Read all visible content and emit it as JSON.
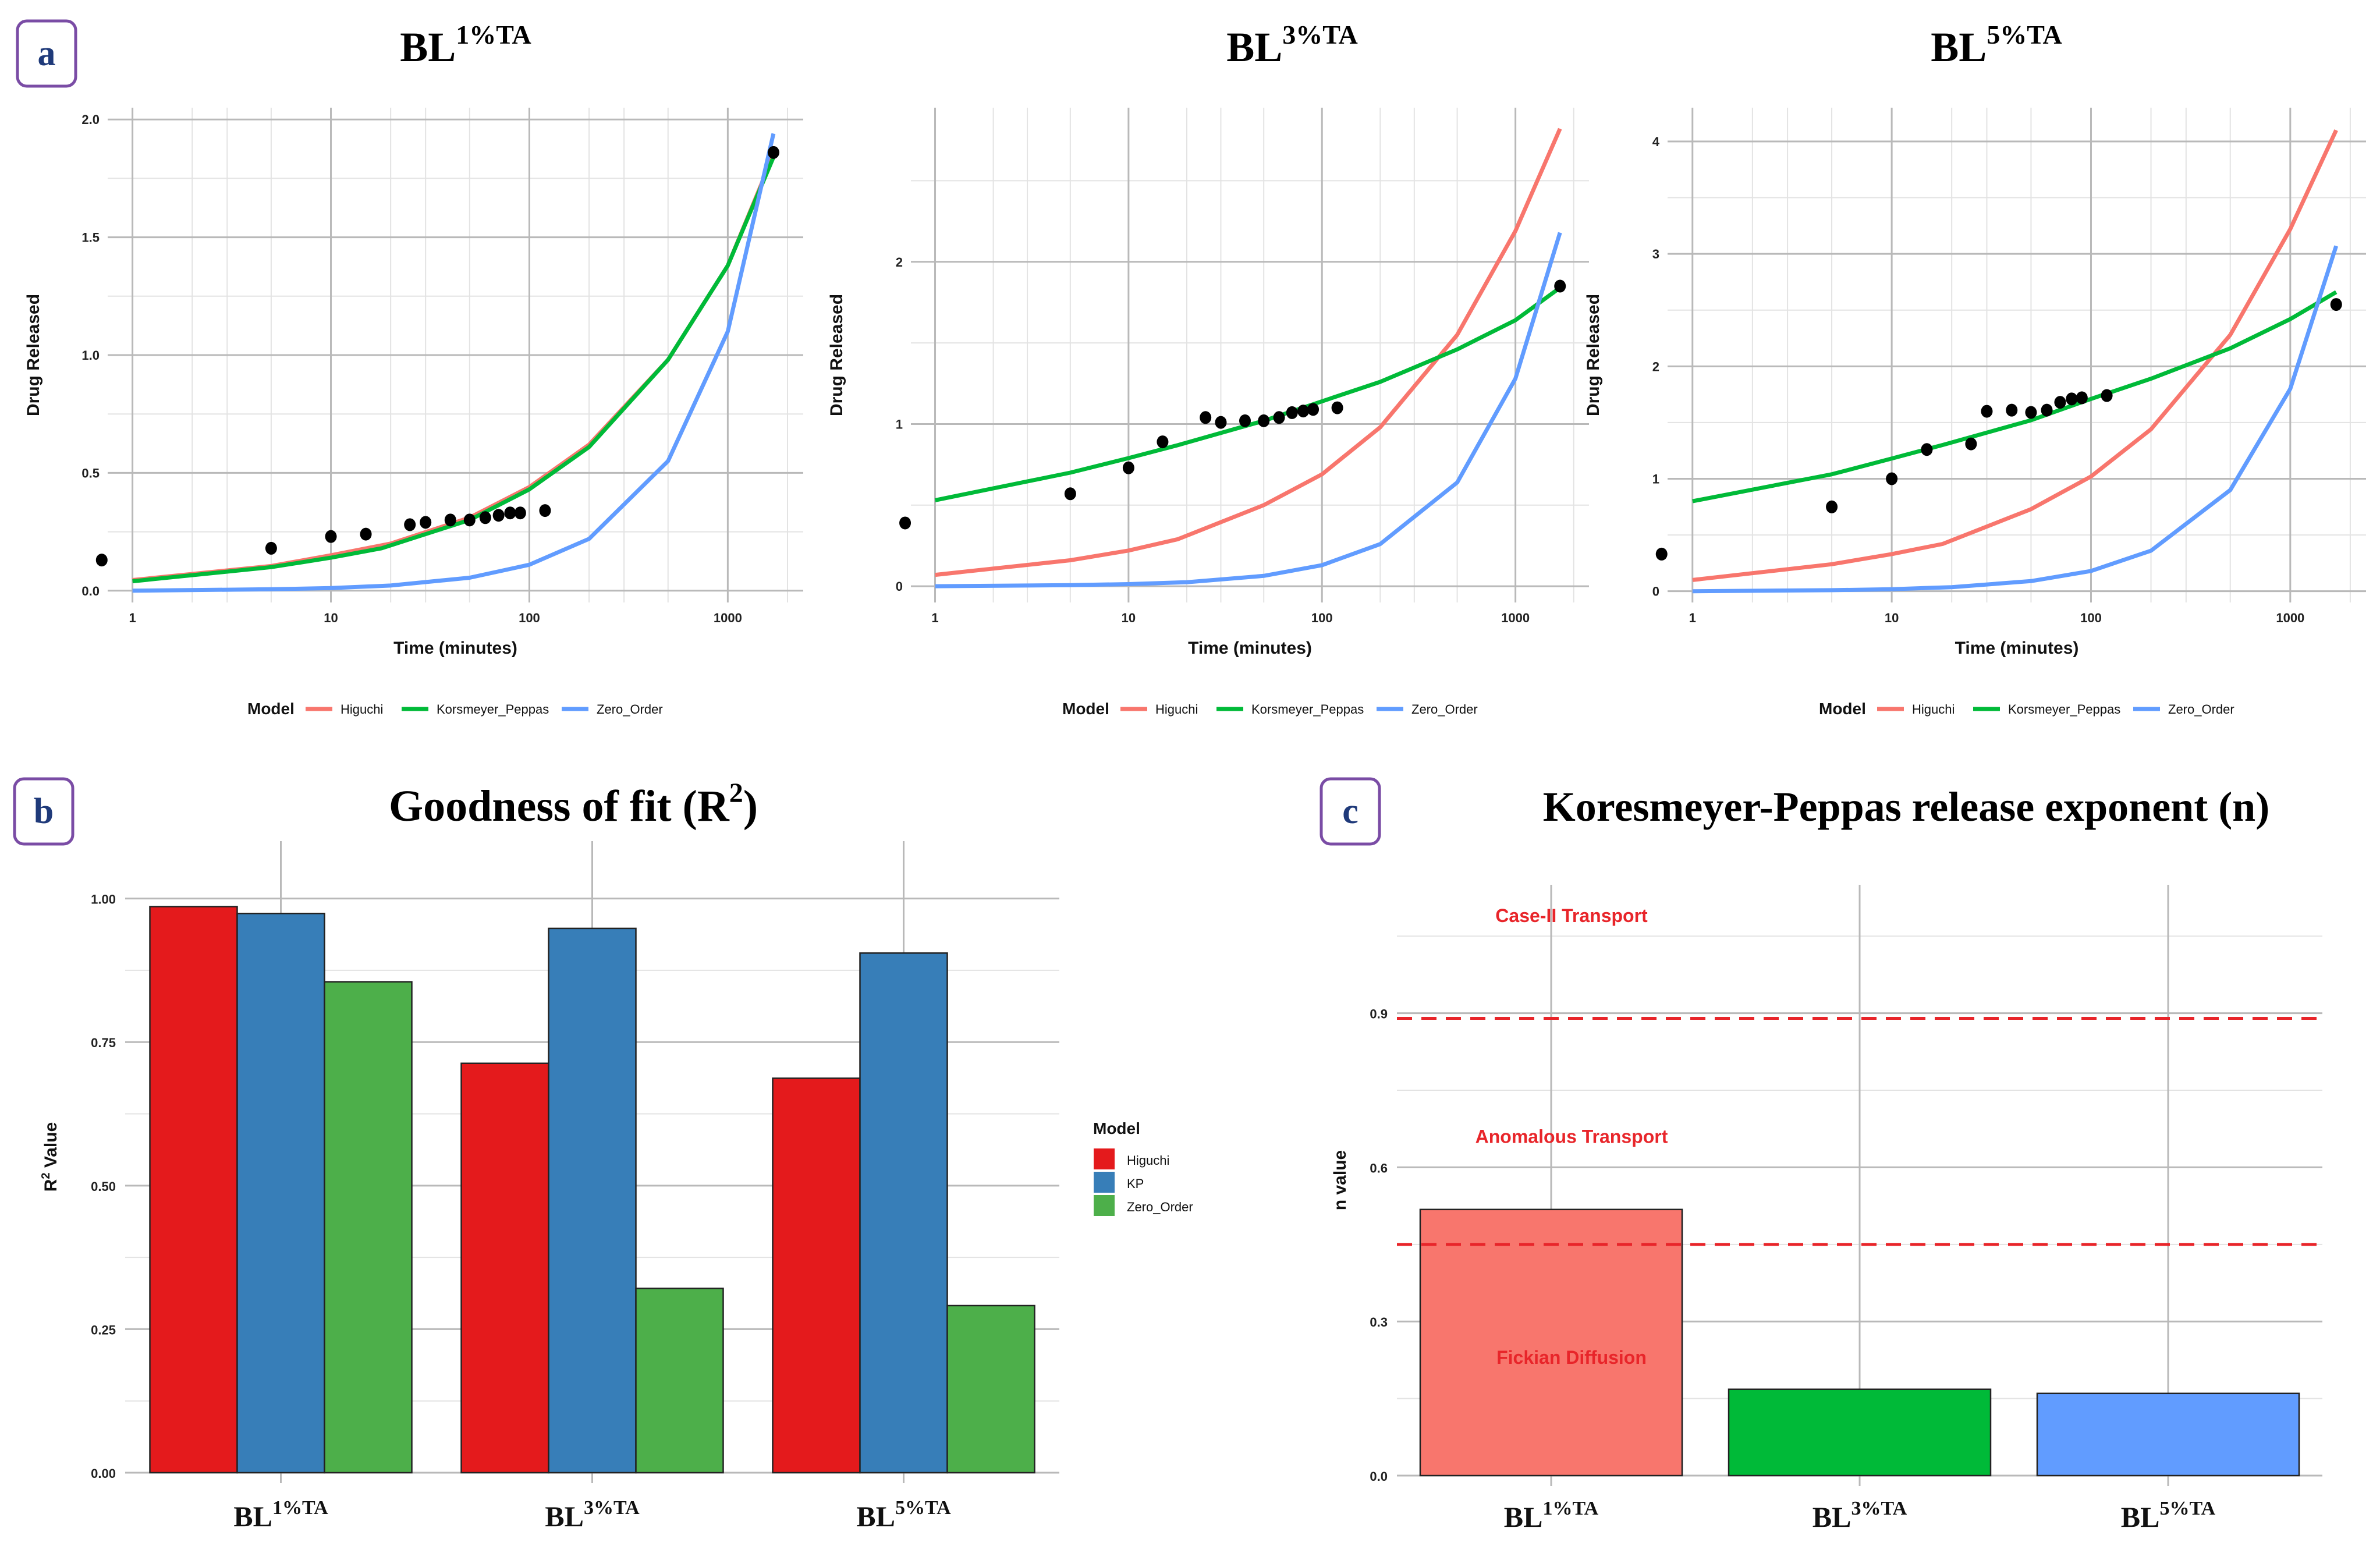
{
  "figure": {
    "panel_labels": {
      "a": "a",
      "b": "b",
      "c": "c"
    }
  },
  "chart_data": [
    {
      "id": "a1",
      "type": "line",
      "title": {
        "base": "BL",
        "sup": "1%TA"
      },
      "xlabel": "Time (minutes)",
      "ylabel": "Drug Released",
      "xscale": "log",
      "xlim": [
        0.75,
        2400
      ],
      "ylim": [
        -0.05,
        2.05
      ],
      "xticks": [
        1,
        10,
        100,
        1000
      ],
      "xtick_labels": [
        "1",
        "10",
        "100",
        "1000"
      ],
      "yticks": [
        0,
        0.5,
        1,
        1.5,
        2
      ],
      "ytick_labels": [
        "0.0",
        "0.5",
        "1.0",
        "1.5",
        "2.0"
      ],
      "legend": {
        "title": "Model",
        "position": "bottom",
        "entries": [
          "Higuchi",
          "Korsmeyer_Peppas",
          "Zero_Order"
        ]
      },
      "series": [
        {
          "name": "Higuchi",
          "color": "#f8766d",
          "points": [
            [
              1,
              0.045
            ],
            [
              5,
              0.105
            ],
            [
              10,
              0.15
            ],
            [
              20,
              0.2
            ],
            [
              50,
              0.31
            ],
            [
              100,
              0.44
            ],
            [
              200,
              0.62
            ],
            [
              500,
              0.98
            ],
            [
              1000,
              1.38
            ],
            [
              1700,
              1.85
            ]
          ]
        },
        {
          "name": "Korsmeyer_Peppas",
          "color": "#00ba38",
          "points": [
            [
              1,
              0.04
            ],
            [
              5,
              0.1
            ],
            [
              10,
              0.14
            ],
            [
              18,
              0.18
            ],
            [
              50,
              0.3
            ],
            [
              100,
              0.43
            ],
            [
              200,
              0.61
            ],
            [
              500,
              0.98
            ],
            [
              1000,
              1.38
            ],
            [
              1700,
              1.84
            ]
          ]
        },
        {
          "name": "Zero_Order",
          "color": "#619cff",
          "points": [
            [
              1,
              0.0
            ],
            [
              5,
              0.006
            ],
            [
              10,
              0.011
            ],
            [
              20,
              0.022
            ],
            [
              50,
              0.055
            ],
            [
              100,
              0.11
            ],
            [
              200,
              0.22
            ],
            [
              500,
              0.55
            ],
            [
              1000,
              1.1
            ],
            [
              1700,
              1.94
            ]
          ]
        },
        {
          "name": "Observed",
          "color": "#000000",
          "marker": "point",
          "points": [
            [
              0.7,
              0.13
            ],
            [
              5,
              0.18
            ],
            [
              10,
              0.23
            ],
            [
              15,
              0.24
            ],
            [
              25,
              0.28
            ],
            [
              30,
              0.29
            ],
            [
              40,
              0.3
            ],
            [
              50,
              0.3
            ],
            [
              60,
              0.31
            ],
            [
              70,
              0.32
            ],
            [
              80,
              0.33
            ],
            [
              90,
              0.33
            ],
            [
              120,
              0.34
            ],
            [
              1700,
              1.86
            ]
          ]
        }
      ]
    },
    {
      "id": "a2",
      "type": "line",
      "title": {
        "base": "BL",
        "sup": "3%TA"
      },
      "xlabel": "Time (minutes)",
      "ylabel": "Drug Released",
      "xscale": "log",
      "xlim": [
        0.75,
        2400
      ],
      "ylim": [
        -0.1,
        2.95
      ],
      "xticks": [
        1,
        10,
        100,
        1000
      ],
      "xtick_labels": [
        "1",
        "10",
        "100",
        "1000"
      ],
      "yticks": [
        0,
        1,
        2
      ],
      "ytick_labels": [
        "0",
        "1",
        "2"
      ],
      "legend": {
        "title": "Model",
        "position": "bottom",
        "entries": [
          "Higuchi",
          "Korsmeyer_Peppas",
          "Zero_Order"
        ]
      },
      "series": [
        {
          "name": "Higuchi",
          "color": "#f8766d",
          "points": [
            [
              1,
              0.07
            ],
            [
              5,
              0.16
            ],
            [
              10,
              0.22
            ],
            [
              18,
              0.29
            ],
            [
              50,
              0.5
            ],
            [
              100,
              0.69
            ],
            [
              200,
              0.98
            ],
            [
              500,
              1.55
            ],
            [
              1000,
              2.19
            ],
            [
              1700,
              2.82
            ]
          ]
        },
        {
          "name": "Korsmeyer_Peppas",
          "color": "#00ba38",
          "points": [
            [
              1,
              0.53
            ],
            [
              5,
              0.7
            ],
            [
              10,
              0.79
            ],
            [
              18,
              0.87
            ],
            [
              50,
              1.02
            ],
            [
              100,
              1.14
            ],
            [
              200,
              1.26
            ],
            [
              500,
              1.46
            ],
            [
              1000,
              1.64
            ],
            [
              1700,
              1.84
            ]
          ]
        },
        {
          "name": "Zero_Order",
          "color": "#619cff",
          "points": [
            [
              1,
              0.0
            ],
            [
              5,
              0.007
            ],
            [
              10,
              0.013
            ],
            [
              20,
              0.025
            ],
            [
              50,
              0.064
            ],
            [
              100,
              0.13
            ],
            [
              200,
              0.26
            ],
            [
              500,
              0.64
            ],
            [
              1000,
              1.28
            ],
            [
              1700,
              2.18
            ]
          ]
        },
        {
          "name": "Observed",
          "color": "#000000",
          "marker": "point",
          "points": [
            [
              0.7,
              0.39
            ],
            [
              5,
              0.57
            ],
            [
              10,
              0.73
            ],
            [
              15,
              0.89
            ],
            [
              25,
              1.04
            ],
            [
              30,
              1.01
            ],
            [
              40,
              1.02
            ],
            [
              50,
              1.02
            ],
            [
              60,
              1.04
            ],
            [
              70,
              1.07
            ],
            [
              80,
              1.08
            ],
            [
              90,
              1.09
            ],
            [
              120,
              1.1
            ],
            [
              1700,
              1.85
            ]
          ]
        }
      ]
    },
    {
      "id": "a3",
      "type": "line",
      "title": {
        "base": "BL",
        "sup": "5%TA"
      },
      "xlabel": "Time (minutes)",
      "ylabel": "Drug Released",
      "xscale": "log",
      "xlim": [
        0.75,
        2400
      ],
      "ylim": [
        -0.1,
        4.3
      ],
      "xticks": [
        1,
        10,
        100,
        1000
      ],
      "xtick_labels": [
        "1",
        "10",
        "100",
        "1000"
      ],
      "yticks": [
        0,
        1,
        2,
        3,
        4
      ],
      "ytick_labels": [
        "0",
        "1",
        "2",
        "3",
        "4"
      ],
      "legend": {
        "title": "Model",
        "position": "bottom",
        "entries": [
          "Higuchi",
          "Korsmeyer_Peppas",
          "Zero_Order"
        ]
      },
      "series": [
        {
          "name": "Higuchi",
          "color": "#f8766d",
          "points": [
            [
              1,
              0.1
            ],
            [
              5,
              0.24
            ],
            [
              10,
              0.33
            ],
            [
              18,
              0.42
            ],
            [
              50,
              0.73
            ],
            [
              100,
              1.02
            ],
            [
              200,
              1.44
            ],
            [
              500,
              2.28
            ],
            [
              1000,
              3.22
            ],
            [
              1700,
              4.1
            ]
          ]
        },
        {
          "name": "Korsmeyer_Peppas",
          "color": "#00ba38",
          "points": [
            [
              1,
              0.8
            ],
            [
              5,
              1.04
            ],
            [
              10,
              1.18
            ],
            [
              18,
              1.3
            ],
            [
              50,
              1.52
            ],
            [
              100,
              1.71
            ],
            [
              200,
              1.89
            ],
            [
              500,
              2.16
            ],
            [
              1000,
              2.42
            ],
            [
              1700,
              2.66
            ]
          ]
        },
        {
          "name": "Zero_Order",
          "color": "#619cff",
          "points": [
            [
              1,
              0.0
            ],
            [
              5,
              0.009
            ],
            [
              10,
              0.018
            ],
            [
              20,
              0.036
            ],
            [
              50,
              0.09
            ],
            [
              100,
              0.18
            ],
            [
              200,
              0.36
            ],
            [
              500,
              0.9
            ],
            [
              1000,
              1.8
            ],
            [
              1700,
              3.07
            ]
          ]
        },
        {
          "name": "Observed",
          "color": "#000000",
          "marker": "point",
          "points": [
            [
              0.7,
              0.33
            ],
            [
              5,
              0.75
            ],
            [
              10,
              1.0
            ],
            [
              15,
              1.26
            ],
            [
              25,
              1.31
            ],
            [
              30,
              1.6
            ],
            [
              40,
              1.61
            ],
            [
              50,
              1.59
            ],
            [
              60,
              1.61
            ],
            [
              70,
              1.68
            ],
            [
              80,
              1.71
            ],
            [
              90,
              1.72
            ],
            [
              120,
              1.74
            ],
            [
              1700,
              2.55
            ]
          ]
        }
      ]
    },
    {
      "id": "b",
      "type": "bar",
      "title": {
        "text": "Goodness of fit (R",
        "sup": "2",
        "tail": ")"
      },
      "ylabel": {
        "text": "R",
        "sup": "2",
        "tail": " Value"
      },
      "ylim": [
        0,
        1.1
      ],
      "yticks": [
        0,
        0.25,
        0.5,
        0.75,
        1
      ],
      "ytick_labels": [
        "0.00",
        "0.25",
        "0.50",
        "0.75",
        "1.00"
      ],
      "categories": [
        {
          "base": "BL",
          "sup": "1%TA"
        },
        {
          "base": "BL",
          "sup": "3%TA"
        },
        {
          "base": "BL",
          "sup": "5%TA"
        }
      ],
      "legend": {
        "title": "Model",
        "position": "right"
      },
      "series": [
        {
          "name": "Higuchi",
          "color": "#e41a1c",
          "values": [
            0.986,
            0.713,
            0.687
          ]
        },
        {
          "name": "KP",
          "color": "#377eb8",
          "values": [
            0.974,
            0.948,
            0.905
          ]
        },
        {
          "name": "Zero_Order",
          "color": "#4daf4a",
          "values": [
            0.855,
            0.321,
            0.291
          ]
        }
      ]
    },
    {
      "id": "c",
      "type": "bar",
      "title": {
        "text": "Koresmeyer-Peppas release exponent (n)"
      },
      "ylabel": "n value",
      "ylim": [
        0,
        1.15
      ],
      "yticks": [
        0,
        0.3,
        0.6,
        0.9
      ],
      "ytick_labels": [
        "0.0",
        "0.3",
        "0.6",
        "0.9"
      ],
      "categories": [
        {
          "base": "BL",
          "sup": "1%TA"
        },
        {
          "base": "BL",
          "sup": "3%TA"
        },
        {
          "base": "BL",
          "sup": "5%TA"
        }
      ],
      "values": [
        0.518,
        0.168,
        0.16
      ],
      "colors": [
        "#f8766d",
        "#00ba38",
        "#619cff"
      ],
      "reference_lines": [
        0.45,
        0.89
      ],
      "regions": [
        {
          "label": "Case-II Transport",
          "y": 1.09
        },
        {
          "label": "Anomalous Transport",
          "y": 0.66
        },
        {
          "label": "Fickian Diffusion",
          "y": 0.23
        }
      ]
    }
  ]
}
